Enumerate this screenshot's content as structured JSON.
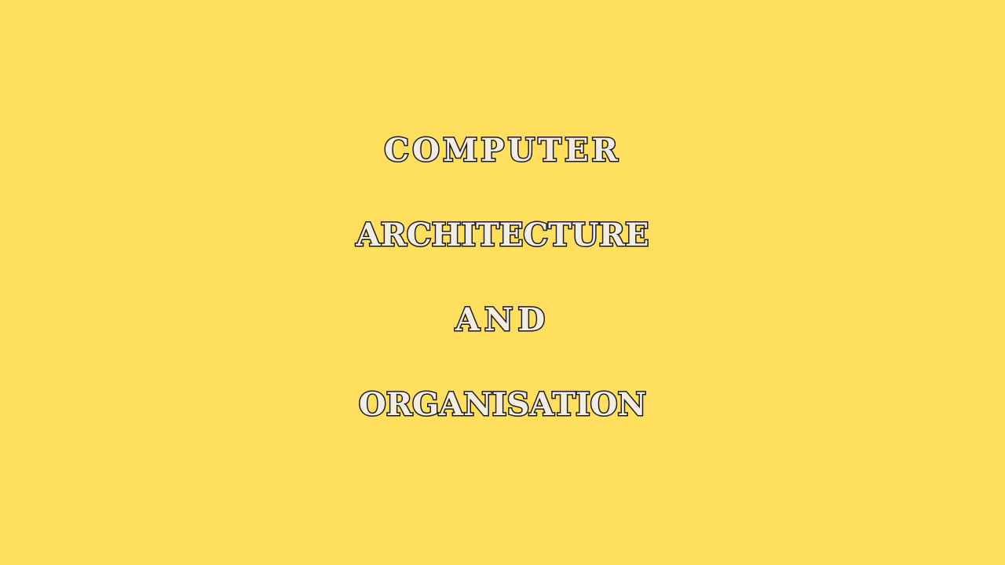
{
  "background_color": "#FFDF5D",
  "text_fill_color": "#F2EDE0",
  "text_outline_color": "#1A1A1A",
  "title": {
    "line1": "COMPUTER",
    "line2": "ARCHITECTURE",
    "line3": "AND",
    "line4": "ORGANISATION"
  }
}
